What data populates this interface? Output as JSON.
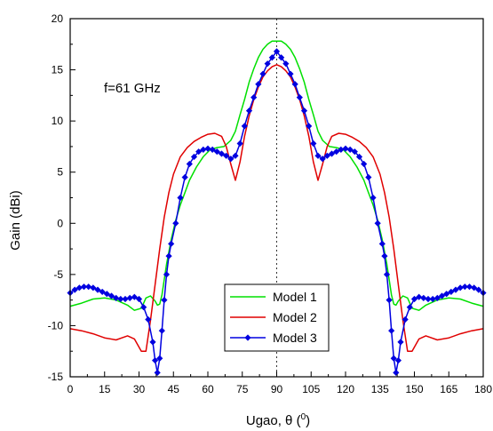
{
  "chart_data": {
    "type": "line",
    "title": "",
    "annotation": "f=61 GHz",
    "xlabel_main": "Ugao, θ (",
    "xlabel_sup": "0",
    "xlabel_end": ")",
    "ylabel": "Gain (dBi)",
    "xlim": [
      0,
      180
    ],
    "ylim": [
      -15,
      20
    ],
    "xticks": [
      0,
      15,
      30,
      45,
      60,
      75,
      90,
      105,
      120,
      135,
      150,
      165,
      180
    ],
    "yticks": [
      -15,
      -10,
      -5,
      0,
      5,
      10,
      15,
      20
    ],
    "vline_x": 90,
    "legend_position": "bottom-center",
    "grid": false,
    "series": [
      {
        "name": "Model 1",
        "color": "#00e000",
        "marker": "none",
        "x": [
          0,
          5,
          10,
          15,
          20,
          25,
          28,
          31,
          33,
          35,
          37,
          38,
          39,
          40,
          41,
          42,
          44,
          46,
          48,
          50,
          52,
          55,
          58,
          61,
          64,
          67,
          70,
          72,
          74,
          76,
          78,
          80,
          82,
          84,
          86,
          88,
          90,
          92,
          94,
          96,
          98,
          100,
          102,
          104,
          106,
          108,
          110,
          113,
          116,
          119,
          122,
          125,
          128,
          130,
          132,
          134,
          136,
          138,
          139,
          140,
          141,
          142,
          143,
          145,
          147,
          149,
          152,
          155,
          160,
          165,
          170,
          175,
          180
        ],
        "y": [
          -8.1,
          -7.8,
          -7.4,
          -7.3,
          -7.5,
          -8.0,
          -8.5,
          -8.3,
          -7.3,
          -7.1,
          -7.6,
          -8.0,
          -7.9,
          -7.0,
          -5.5,
          -4.0,
          -1.6,
          0.3,
          1.8,
          3.0,
          4.2,
          5.5,
          6.5,
          7.2,
          7.4,
          7.5,
          8.1,
          9.0,
          10.6,
          12.1,
          13.8,
          15.1,
          16.2,
          17.0,
          17.5,
          17.8,
          17.8,
          17.8,
          17.5,
          17.0,
          16.2,
          15.1,
          13.8,
          12.1,
          10.6,
          9.0,
          8.1,
          7.5,
          7.4,
          7.2,
          6.5,
          5.5,
          4.2,
          3.0,
          1.8,
          0.3,
          -1.6,
          -4.0,
          -5.5,
          -7.0,
          -7.9,
          -8.0,
          -7.6,
          -7.1,
          -7.3,
          -8.3,
          -8.5,
          -8.0,
          -7.5,
          -7.3,
          -7.4,
          -7.8,
          -8.1
        ]
      },
      {
        "name": "Model 2",
        "color": "#e00000",
        "marker": "none",
        "x": [
          0,
          5,
          10,
          15,
          20,
          25,
          28,
          31,
          33,
          35,
          37,
          39,
          41,
          43,
          45,
          48,
          51,
          54,
          57,
          60,
          63,
          66,
          68,
          70,
          72,
          74,
          76,
          78,
          80,
          82,
          84,
          86,
          88,
          90,
          92,
          94,
          96,
          98,
          100,
          102,
          104,
          106,
          108,
          110,
          112,
          114,
          117,
          120,
          123,
          126,
          129,
          132,
          135,
          137,
          139,
          141,
          143,
          145,
          147,
          149,
          152,
          155,
          160,
          165,
          170,
          175,
          180
        ],
        "y": [
          -10.3,
          -10.5,
          -10.8,
          -11.2,
          -11.4,
          -11.0,
          -11.3,
          -12.5,
          -12.5,
          -9.5,
          -6.0,
          -2.5,
          0.6,
          3.0,
          4.8,
          6.5,
          7.4,
          8.0,
          8.4,
          8.7,
          8.8,
          8.5,
          7.5,
          5.8,
          4.2,
          6.0,
          8.5,
          10.5,
          12.1,
          13.3,
          14.3,
          14.9,
          15.3,
          15.5,
          15.3,
          14.9,
          14.3,
          13.3,
          12.1,
          10.5,
          8.5,
          6.0,
          4.2,
          5.8,
          7.5,
          8.5,
          8.8,
          8.7,
          8.4,
          8.0,
          7.4,
          6.5,
          4.8,
          3.0,
          0.6,
          -2.5,
          -6.0,
          -9.5,
          -12.5,
          -12.5,
          -11.3,
          -11.0,
          -11.4,
          -11.2,
          -10.8,
          -10.5,
          -10.3
        ]
      },
      {
        "name": "Model 3",
        "color": "#0000e0",
        "marker": "diamond",
        "x": [
          0,
          2,
          4,
          6,
          8,
          10,
          12,
          14,
          16,
          18,
          20,
          22,
          24,
          26,
          28,
          30,
          32,
          34,
          36,
          37,
          38,
          39,
          40,
          41,
          42,
          43,
          44,
          46,
          48,
          50,
          52,
          54,
          56,
          58,
          60,
          62,
          64,
          66,
          68,
          70,
          72,
          74,
          76,
          78,
          80,
          82,
          84,
          86,
          88,
          90,
          92,
          94,
          96,
          98,
          100,
          102,
          104,
          106,
          108,
          110,
          112,
          114,
          116,
          118,
          120,
          122,
          124,
          126,
          128,
          130,
          132,
          134,
          136,
          137,
          138,
          139,
          140,
          141,
          142,
          143,
          144,
          146,
          148,
          150,
          152,
          154,
          156,
          158,
          160,
          162,
          164,
          166,
          168,
          170,
          172,
          174,
          176,
          178,
          180
        ],
        "y": [
          -6.8,
          -6.5,
          -6.3,
          -6.2,
          -6.2,
          -6.3,
          -6.5,
          -6.7,
          -6.9,
          -7.1,
          -7.3,
          -7.4,
          -7.4,
          -7.3,
          -7.2,
          -7.4,
          -8.2,
          -9.4,
          -11.6,
          -13.4,
          -14.6,
          -13.2,
          -10.5,
          -7.5,
          -5.0,
          -3.2,
          -2.0,
          0.0,
          2.5,
          4.5,
          5.8,
          6.5,
          7.0,
          7.2,
          7.3,
          7.2,
          7.0,
          6.8,
          6.6,
          6.3,
          6.6,
          7.8,
          9.5,
          11.0,
          12.3,
          13.6,
          14.6,
          15.6,
          16.2,
          16.8,
          16.2,
          15.6,
          14.6,
          13.6,
          12.3,
          11.0,
          9.5,
          7.8,
          6.6,
          6.3,
          6.6,
          6.8,
          7.0,
          7.2,
          7.3,
          7.2,
          7.0,
          6.5,
          5.8,
          4.5,
          2.5,
          0.0,
          -2.0,
          -3.2,
          -5.0,
          -7.5,
          -10.5,
          -13.2,
          -14.6,
          -13.4,
          -11.6,
          -9.4,
          -8.2,
          -7.4,
          -7.2,
          -7.3,
          -7.4,
          -7.4,
          -7.3,
          -7.1,
          -6.9,
          -6.7,
          -6.5,
          -6.3,
          -6.2,
          -6.2,
          -6.3,
          -6.5,
          -6.8
        ]
      }
    ]
  }
}
